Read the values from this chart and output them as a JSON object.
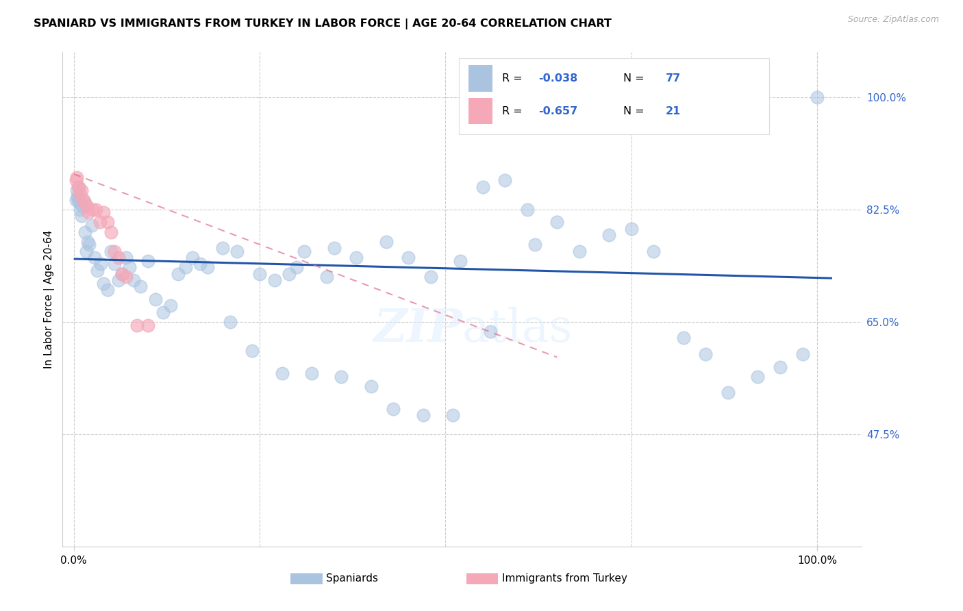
{
  "title": "SPANIARD VS IMMIGRANTS FROM TURKEY IN LABOR FORCE | AGE 20-64 CORRELATION CHART",
  "source": "Source: ZipAtlas.com",
  "ylabel": "In Labor Force | Age 20-64",
  "y_tick_values": [
    0.475,
    0.65,
    0.825,
    1.0
  ],
  "xlim": [
    -0.015,
    1.06
  ],
  "ylim": [
    0.3,
    1.07
  ],
  "blue_color": "#aac4e0",
  "pink_color": "#f4a8b8",
  "blue_line_color": "#2255aa",
  "pink_line_color": "#e07090",
  "watermark": "ZIPatlas",
  "spaniards_x": [
    0.003,
    0.004,
    0.005,
    0.006,
    0.007,
    0.008,
    0.009,
    0.01,
    0.011,
    0.013,
    0.015,
    0.017,
    0.019,
    0.021,
    0.024,
    0.028,
    0.032,
    0.036,
    0.04,
    0.045,
    0.05,
    0.055,
    0.06,
    0.065,
    0.07,
    0.075,
    0.08,
    0.09,
    0.1,
    0.11,
    0.12,
    0.13,
    0.14,
    0.15,
    0.16,
    0.17,
    0.18,
    0.2,
    0.22,
    0.25,
    0.27,
    0.29,
    0.31,
    0.35,
    0.38,
    0.42,
    0.45,
    0.48,
    0.52,
    0.55,
    0.58,
    0.62,
    0.65,
    0.68,
    0.72,
    0.75,
    0.78,
    0.82,
    0.85,
    0.88,
    0.92,
    0.95,
    0.98,
    1.0,
    0.21,
    0.24,
    0.28,
    0.32,
    0.36,
    0.4,
    0.43,
    0.47,
    0.51,
    0.56,
    0.61,
    0.3,
    0.34
  ],
  "spaniards_y": [
    0.84,
    0.855,
    0.845,
    0.84,
    0.86,
    0.835,
    0.825,
    0.815,
    0.83,
    0.84,
    0.79,
    0.76,
    0.775,
    0.77,
    0.8,
    0.75,
    0.73,
    0.74,
    0.71,
    0.7,
    0.76,
    0.74,
    0.715,
    0.725,
    0.75,
    0.735,
    0.715,
    0.705,
    0.745,
    0.685,
    0.665,
    0.675,
    0.725,
    0.735,
    0.75,
    0.74,
    0.735,
    0.765,
    0.76,
    0.725,
    0.715,
    0.725,
    0.76,
    0.765,
    0.75,
    0.775,
    0.75,
    0.72,
    0.745,
    0.86,
    0.87,
    0.77,
    0.805,
    0.76,
    0.785,
    0.795,
    0.76,
    0.625,
    0.6,
    0.54,
    0.565,
    0.58,
    0.6,
    1.0,
    0.65,
    0.605,
    0.57,
    0.57,
    0.565,
    0.55,
    0.515,
    0.505,
    0.505,
    0.635,
    0.825,
    0.735,
    0.72
  ],
  "turkey_x": [
    0.003,
    0.004,
    0.006,
    0.008,
    0.01,
    0.012,
    0.015,
    0.018,
    0.02,
    0.025,
    0.03,
    0.035,
    0.04,
    0.045,
    0.05,
    0.055,
    0.06,
    0.065,
    0.07,
    0.085,
    0.1
  ],
  "turkey_y": [
    0.87,
    0.875,
    0.86,
    0.85,
    0.855,
    0.84,
    0.835,
    0.83,
    0.82,
    0.825,
    0.825,
    0.805,
    0.82,
    0.805,
    0.79,
    0.76,
    0.75,
    0.725,
    0.72,
    0.645,
    0.645
  ],
  "blue_trend_x": [
    0.0,
    1.02
  ],
  "blue_trend_y": [
    0.748,
    0.718
  ],
  "pink_trend_x": [
    0.0,
    0.65
  ],
  "pink_trend_y": [
    0.88,
    0.595
  ]
}
